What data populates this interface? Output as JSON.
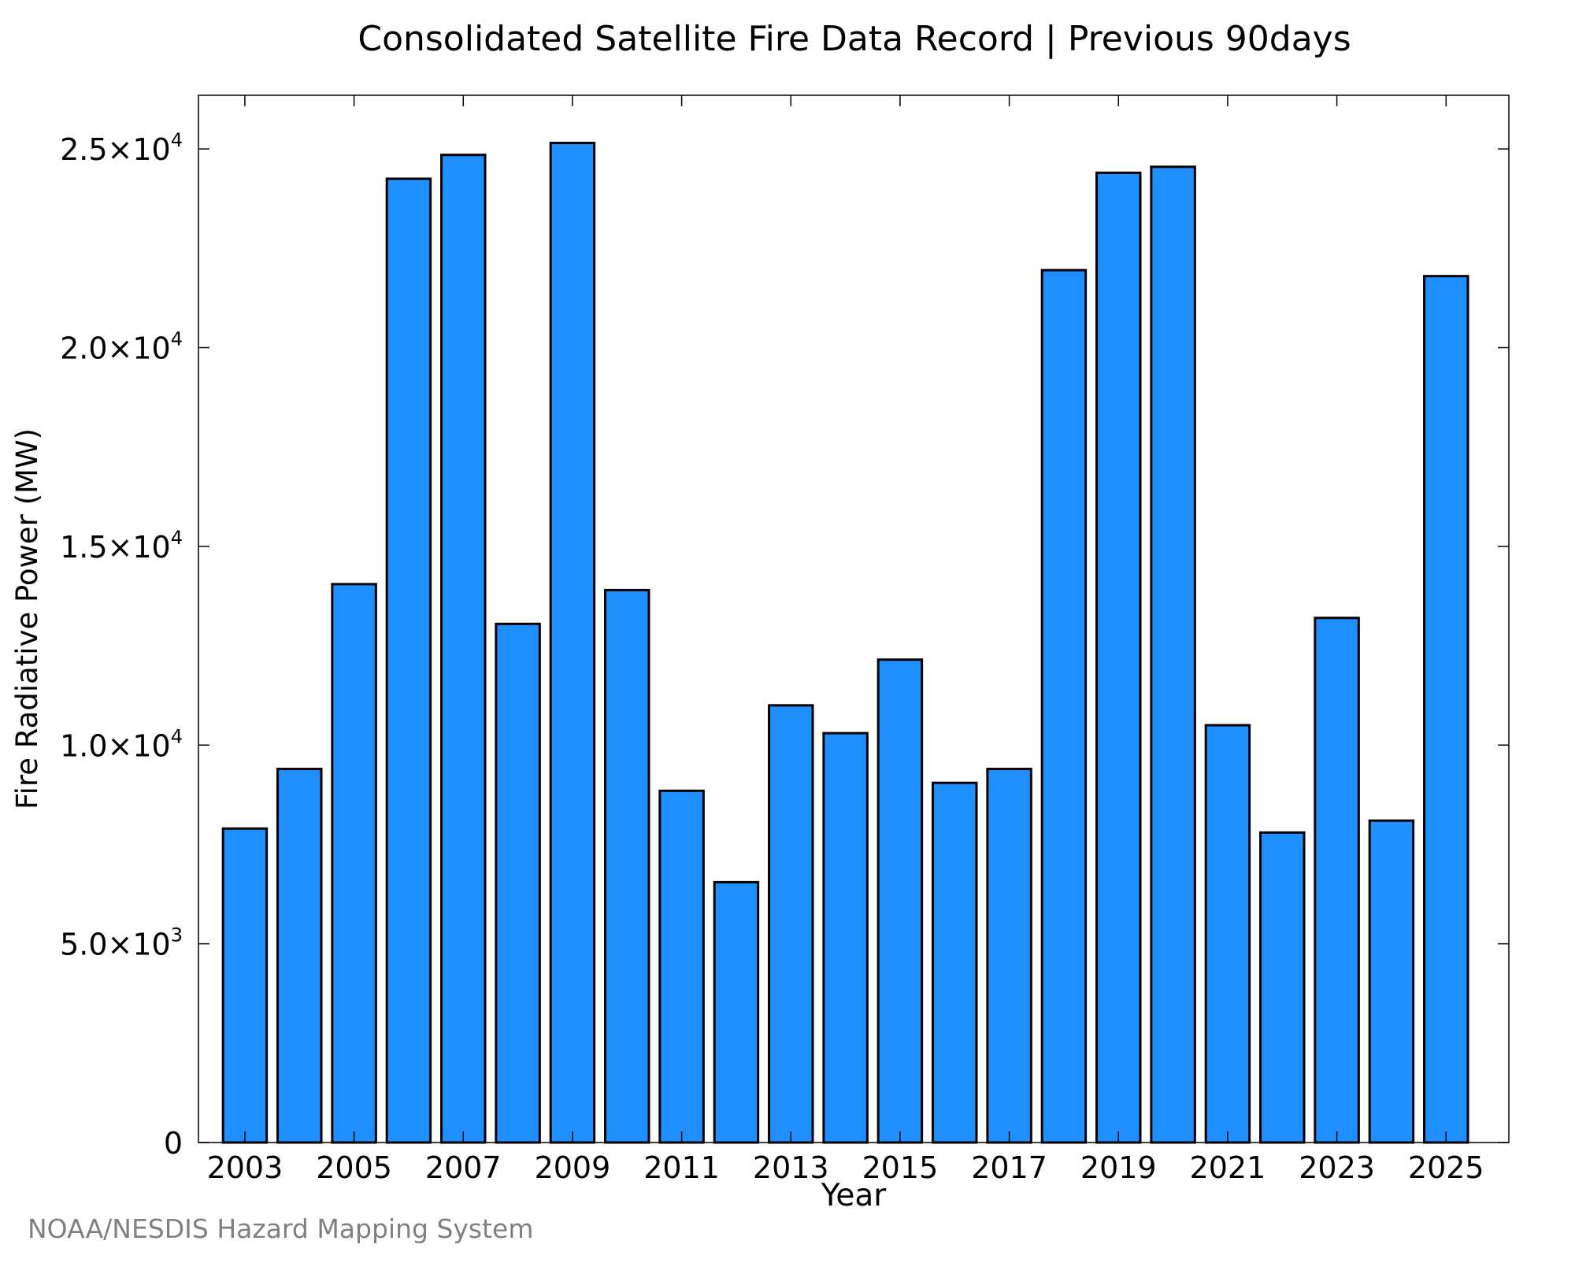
{
  "chart_data": {
    "type": "bar",
    "title": "Consolidated Satellite Fire Data Record | Previous 90days",
    "xlabel": "Year",
    "ylabel": "Fire Radiative Power (MW)",
    "credit": "NOAA/NESDIS Hazard Mapping System",
    "ylim": [
      0,
      26350
    ],
    "xlim": [
      2002.15,
      2026.15
    ],
    "grid": false,
    "legend": "none",
    "bar_color": "#1f8fff",
    "bar_edge_color": "#000000",
    "categories": [
      2003,
      2004,
      2005,
      2006,
      2007,
      2008,
      2009,
      2010,
      2011,
      2012,
      2013,
      2014,
      2015,
      2016,
      2017,
      2018,
      2019,
      2020,
      2021,
      2022,
      2023,
      2024,
      2025
    ],
    "values": [
      7900,
      9400,
      14050,
      24250,
      24850,
      13050,
      25150,
      13900,
      8850,
      6550,
      11000,
      10300,
      12150,
      9050,
      9400,
      21950,
      24400,
      24550,
      10500,
      7800,
      13200,
      8100,
      21800
    ],
    "x_ticks": [
      2003,
      2005,
      2007,
      2009,
      2011,
      2013,
      2015,
      2017,
      2019,
      2021,
      2023,
      2025
    ],
    "x_tick_labels": [
      "2003",
      "2005",
      "2007",
      "2009",
      "2011",
      "2013",
      "2015",
      "2017",
      "2019",
      "2021",
      "2023",
      "2025"
    ],
    "y_ticks": [
      {
        "value": 0,
        "mantissa": "0",
        "exponent": ""
      },
      {
        "value": 5000,
        "mantissa": "5.0×10",
        "exponent": "3"
      },
      {
        "value": 10000,
        "mantissa": "1.0×10",
        "exponent": "4"
      },
      {
        "value": 15000,
        "mantissa": "1.5×10",
        "exponent": "4"
      },
      {
        "value": 20000,
        "mantissa": "2.0×10",
        "exponent": "4"
      },
      {
        "value": 25000,
        "mantissa": "2.5×10",
        "exponent": "4"
      }
    ]
  }
}
